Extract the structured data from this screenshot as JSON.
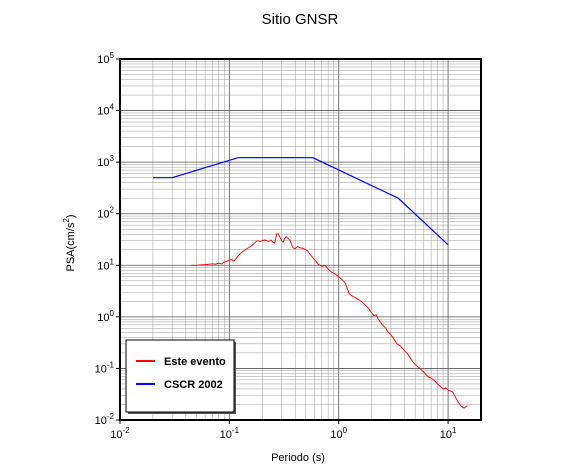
{
  "chart_data": {
    "type": "line",
    "title": "Sitio GNSR",
    "xlabel": "Periodo (s)",
    "ylabel": "PSA(cm/s²)",
    "ylabel_parts": {
      "prefix": "PSA(cm/s",
      "exponent": "2",
      "suffix": ")"
    },
    "xscale": "log",
    "yscale": "log",
    "xlim": [
      0.01,
      20
    ],
    "ylim": [
      0.01,
      100000
    ],
    "x_ticks": [
      {
        "base": "10",
        "exp": "-2"
      },
      {
        "base": "10",
        "exp": "-1"
      },
      {
        "base": "10",
        "exp": "0"
      },
      {
        "base": "10",
        "exp": "1"
      }
    ],
    "y_ticks": [
      {
        "base": "10",
        "exp": "-2"
      },
      {
        "base": "10",
        "exp": "-1"
      },
      {
        "base": "10",
        "exp": "0"
      },
      {
        "base": "10",
        "exp": "1"
      },
      {
        "base": "10",
        "exp": "2"
      },
      {
        "base": "10",
        "exp": "3"
      },
      {
        "base": "10",
        "exp": "4"
      },
      {
        "base": "10",
        "exp": "5"
      }
    ],
    "grid": true,
    "legend_position": "bottom-left",
    "series": [
      {
        "name": "Este evento",
        "color": "#ff0000",
        "x": [
          0.045,
          0.05,
          0.055,
          0.06,
          0.065,
          0.07,
          0.075,
          0.08,
          0.085,
          0.09,
          0.095,
          0.1,
          0.105,
          0.11,
          0.115,
          0.12,
          0.13,
          0.14,
          0.15,
          0.16,
          0.17,
          0.18,
          0.19,
          0.2,
          0.21,
          0.22,
          0.23,
          0.24,
          0.25,
          0.26,
          0.27,
          0.28,
          0.29,
          0.3,
          0.31,
          0.32,
          0.33,
          0.34,
          0.35,
          0.36,
          0.38,
          0.4,
          0.42,
          0.44,
          0.46,
          0.48,
          0.5,
          0.52,
          0.55,
          0.6,
          0.65,
          0.7,
          0.75,
          0.8,
          0.85,
          0.9,
          0.95,
          1.0,
          1.05,
          1.1,
          1.15,
          1.2,
          1.25,
          1.3,
          1.4,
          1.5,
          1.6,
          1.7,
          1.8,
          1.9,
          2.0,
          2.1,
          2.2,
          2.3,
          2.4,
          2.5,
          2.6,
          2.7,
          2.8,
          3.0,
          3.2,
          3.4,
          3.6,
          3.8,
          4.0,
          4.2,
          4.5,
          4.8,
          5.0,
          5.5,
          6.0,
          6.5,
          7.0,
          7.5,
          8.0,
          8.5,
          9.0,
          9.5,
          10.0,
          11.0,
          12.0,
          13.0,
          14.0,
          15.0
        ],
        "y": [
          10,
          10,
          10.2,
          10.3,
          10.5,
          10.7,
          10.5,
          11.0,
          10.6,
          11.5,
          12,
          12.5,
          13,
          12,
          13.5,
          15,
          18,
          20,
          22,
          24,
          27,
          30,
          29,
          30,
          31,
          30,
          29,
          31,
          28,
          27,
          40,
          41,
          35,
          30,
          28,
          33,
          36,
          34,
          32,
          30,
          22,
          21,
          23,
          22,
          21.5,
          21,
          20,
          19,
          16,
          13,
          10.5,
          9.5,
          10,
          8.5,
          7.5,
          7,
          6.5,
          6,
          5.5,
          5,
          4.5,
          3.5,
          2.8,
          2.6,
          2.4,
          2.2,
          2.0,
          1.8,
          1.6,
          1.4,
          1.2,
          1.05,
          1.1,
          0.9,
          0.8,
          0.7,
          0.65,
          0.6,
          0.52,
          0.45,
          0.37,
          0.3,
          0.28,
          0.25,
          0.22,
          0.2,
          0.16,
          0.13,
          0.12,
          0.1,
          0.085,
          0.07,
          0.065,
          0.058,
          0.05,
          0.045,
          0.04,
          0.042,
          0.038,
          0.035,
          0.025,
          0.019,
          0.017,
          0.019
        ]
      },
      {
        "name": "CSCR 2002",
        "color": "#0000ff",
        "x": [
          0.02,
          0.03,
          0.12,
          0.58,
          3.5,
          10
        ],
        "y": [
          500,
          500,
          1220,
          1220,
          200,
          25
        ]
      }
    ]
  }
}
